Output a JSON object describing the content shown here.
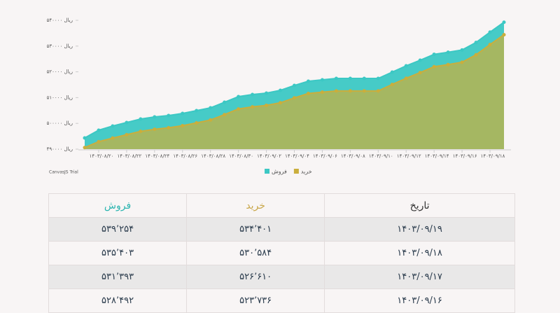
{
  "chart_data": {
    "type": "area",
    "categories": [
      null,
      "۱۴۰۳/۰۸/۲۰",
      null,
      "۱۴۰۳/۰۸/۲۲",
      null,
      "۱۴۰۳/۰۸/۲۴",
      null,
      "۱۴۰۳/۰۸/۲۶",
      null,
      "۱۴۰۳/۰۸/۲۸",
      null,
      "۱۴۰۳/۰۸/۳۰",
      null,
      "۱۴۰۳/۰۹/۰۲",
      null,
      "۱۴۰۳/۰۹/۰۴",
      null,
      "۱۴۰۳/۰۹/۰۶",
      null,
      "۱۴۰۳/۰۹/۰۸",
      null,
      "۱۴۰۳/۰۹/۱۰",
      null,
      "۱۴۰۳/۰۹/۱۲",
      null,
      "۱۴۰۳/۰۹/۱۴",
      null,
      "۱۴۰۳/۰۹/۱۶",
      null,
      "۱۴۰۳/۰۹/۱۸",
      null
    ],
    "series": [
      {
        "name": "فروش",
        "color": "#3cc8c4",
        "values": [
          494350,
          497340,
          498970,
          500330,
          501680,
          502500,
          503040,
          503860,
          504940,
          506030,
          508200,
          510380,
          511190,
          511740,
          512820,
          514720,
          516360,
          516900,
          517440,
          517440,
          517440,
          517440,
          519890,
          522330,
          524500,
          526800,
          527600,
          528492,
          531393,
          535403,
          539254
        ]
      },
      {
        "name": "خرید",
        "color": "#caae3c",
        "values": [
          490600,
          492900,
          494300,
          495600,
          496900,
          497700,
          498300,
          499100,
          500200,
          501300,
          503400,
          505600,
          506400,
          507000,
          508000,
          509900,
          511600,
          512100,
          512600,
          512600,
          512600,
          512600,
          515100,
          517500,
          519700,
          522000,
          522800,
          523736,
          526610,
          530584,
          534401
        ]
      }
    ],
    "ylim": [
      490000,
      540000
    ],
    "yticks": [
      {
        "value": 490000,
        "label": "۴۹۰۰۰۰ ریال"
      },
      {
        "value": 500000,
        "label": "۵۰۰۰۰۰ ریال"
      },
      {
        "value": 510000,
        "label": "۵۱۰۰۰۰ ریال"
      },
      {
        "value": 520000,
        "label": "۵۲۰۰۰۰ ریال"
      },
      {
        "value": 530000,
        "label": "۵۳۰۰۰۰ ریال"
      },
      {
        "value": 540000,
        "label": "۵۴۰۰۰۰ ریال"
      }
    ],
    "grid": false,
    "legend": "bottom",
    "credit": "CanvasJS Trial"
  },
  "table": {
    "header": [
      "تاریخ",
      "خرید",
      "فروش"
    ],
    "rows": [
      [
        "۱۴۰۳/۰۹/۱۹",
        "۵۳۴٬۴۰۱",
        "۵۳۹٬۲۵۴"
      ],
      [
        "۱۴۰۳/۰۹/۱۸",
        "۵۳۰٬۵۸۴",
        "۵۳۵٬۴۰۳"
      ],
      [
        "۱۴۰۳/۰۹/۱۷",
        "۵۲۶٬۶۱۰",
        "۵۳۱٬۳۹۳"
      ],
      [
        "۱۴۰۳/۰۹/۱۶",
        "۵۲۳٬۷۳۶",
        "۵۲۸٬۴۹۲"
      ]
    ]
  }
}
